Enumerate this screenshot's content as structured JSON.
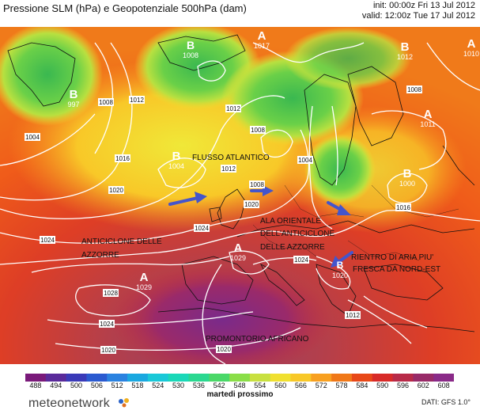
{
  "header": {
    "title": "Pressione SLM (hPa) e Geopotenziale 500hPa (dam)",
    "init": "init: 00:00z Fri 13 Jul 2012",
    "valid": "valid: 12:00z Tue 17 Jul 2012"
  },
  "map": {
    "pressure_centers": [
      {
        "letter": "B",
        "value": "1008"
      },
      {
        "letter": "A",
        "value": "1017"
      },
      {
        "letter": "B",
        "value": "1012"
      },
      {
        "letter": "A",
        "value": "1010"
      },
      {
        "letter": "B",
        "value": "997"
      },
      {
        "letter": "B",
        "value": "1004"
      },
      {
        "letter": "A",
        "value": "1011"
      },
      {
        "letter": "B",
        "value": "1000"
      },
      {
        "letter": "A",
        "value": "1029"
      },
      {
        "letter": "A",
        "value": "1029"
      },
      {
        "letter": "B",
        "value": "1020"
      }
    ],
    "isobar_labels": [
      "1008",
      "1012",
      "1004",
      "1016",
      "1020",
      "1012",
      "1008",
      "1004",
      "1012",
      "1008",
      "1008",
      "1016",
      "1020",
      "1024",
      "1024",
      "1028",
      "1024",
      "1024",
      "1020",
      "1020",
      "1012"
    ],
    "annotations": [
      "FLUSSO ATLANTICO",
      "ANTICICLONE DELLE",
      "AZZORRE",
      "ALA ORIENTALE",
      "DELL'ANTICICLONE",
      "DELLE AZZORRE",
      "RIENTRO DI ARIA PIU'",
      "FRESCA DA NORD-EST",
      "PROMONTORIO AFRICANO"
    ],
    "arrow_color": "#4455cc"
  },
  "colorbar": {
    "ticks": [
      "488",
      "494",
      "500",
      "506",
      "512",
      "518",
      "524",
      "530",
      "536",
      "542",
      "548",
      "554",
      "560",
      "566",
      "572",
      "578",
      "584",
      "590",
      "596",
      "602",
      "608"
    ],
    "colors": [
      "#7a1a7a",
      "#5a2a9a",
      "#3a3ab8",
      "#2a5ad0",
      "#2a82e0",
      "#1aa8e0",
      "#1ac8d8",
      "#1ad8b8",
      "#2ad890",
      "#4ad868",
      "#8ade48",
      "#c8e040",
      "#f0e030",
      "#f8c828",
      "#f8a020",
      "#f07818",
      "#e84818",
      "#d82a28",
      "#b82a48",
      "#982a68",
      "#8a2a88"
    ]
  },
  "subtitle": "martedi prossimo",
  "source": "DATI: GFS 1.0°",
  "logo": "meteonetwork"
}
